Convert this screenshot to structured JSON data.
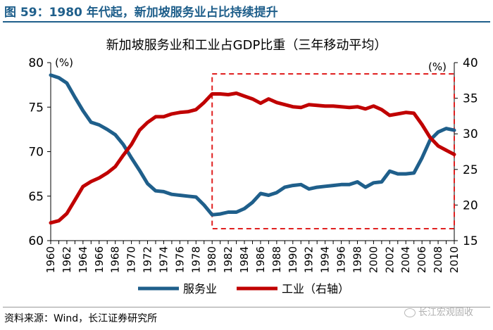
{
  "figure_label": "图 59：1980 年代起，新加坡服务业占比持续提升",
  "source": "资料来源：Wind，长江证券研究所",
  "watermark": "长江宏观固收",
  "chart_data": {
    "type": "line",
    "title": "新加坡服务业和工业占GDP比重（三年移动平均）",
    "left_unit": "(%)",
    "right_unit": "(%)",
    "x": [
      1960,
      1961,
      1962,
      1963,
      1964,
      1965,
      1966,
      1967,
      1968,
      1969,
      1970,
      1971,
      1972,
      1973,
      1974,
      1975,
      1976,
      1977,
      1978,
      1979,
      1980,
      1981,
      1982,
      1983,
      1984,
      1985,
      1986,
      1987,
      1988,
      1989,
      1990,
      1991,
      1992,
      1993,
      1994,
      1995,
      1996,
      1997,
      1998,
      1999,
      2000,
      2001,
      2002,
      2003,
      2004,
      2005,
      2006,
      2007,
      2008,
      2009,
      2010
    ],
    "xlim": [
      1960,
      2010
    ],
    "x_ticks": [
      "1960",
      "1962",
      "1964",
      "1966",
      "1968",
      "1970",
      "1972",
      "1974",
      "1976",
      "1978",
      "1980",
      "1982",
      "1984",
      "1986",
      "1988",
      "1990",
      "1992",
      "1994",
      "1996",
      "1998",
      "2000",
      "2002",
      "2004",
      "2006",
      "2008",
      "2010"
    ],
    "y_left": {
      "lim": [
        60,
        80
      ],
      "ticks": [
        "60",
        "65",
        "70",
        "75",
        "80"
      ]
    },
    "y_right": {
      "lim": [
        15,
        40
      ],
      "ticks": [
        "15",
        "20",
        "25",
        "30",
        "35",
        "40"
      ]
    },
    "series": [
      {
        "name": "服务业",
        "axis": "left",
        "color": "#1f5f8b",
        "values": [
          78.6,
          78.3,
          77.7,
          76.1,
          74.6,
          73.3,
          73.0,
          72.5,
          71.9,
          70.8,
          69.3,
          67.9,
          66.4,
          65.6,
          65.5,
          65.2,
          65.1,
          65.0,
          64.9,
          64.0,
          62.9,
          63.0,
          63.2,
          63.2,
          63.6,
          64.3,
          65.3,
          65.1,
          65.4,
          66.0,
          66.2,
          66.3,
          65.8,
          66.0,
          66.1,
          66.2,
          66.3,
          66.3,
          66.6,
          66.0,
          66.5,
          66.6,
          67.8,
          67.5,
          67.5,
          67.6,
          69.3,
          71.3,
          72.2,
          72.6,
          72.4
        ]
      },
      {
        "name": "工业（右轴）",
        "axis": "right",
        "color": "#c00000",
        "values": [
          17.5,
          17.8,
          18.8,
          20.7,
          22.6,
          23.3,
          23.8,
          24.5,
          25.4,
          27.0,
          28.5,
          30.5,
          31.6,
          32.4,
          32.4,
          32.8,
          33.0,
          33.1,
          33.4,
          34.4,
          35.6,
          35.6,
          35.5,
          35.7,
          35.3,
          34.9,
          34.3,
          34.9,
          34.4,
          34.1,
          33.8,
          33.7,
          34.1,
          34.0,
          33.9,
          33.9,
          33.8,
          33.7,
          33.8,
          33.5,
          33.9,
          33.4,
          32.6,
          32.8,
          33.0,
          32.9,
          31.3,
          29.5,
          28.3,
          27.7,
          27.1
        ]
      }
    ],
    "highlight": {
      "x_range": [
        1980,
        2010
      ],
      "style": "red dashed box"
    },
    "legend": {
      "position": "bottom-center"
    }
  }
}
